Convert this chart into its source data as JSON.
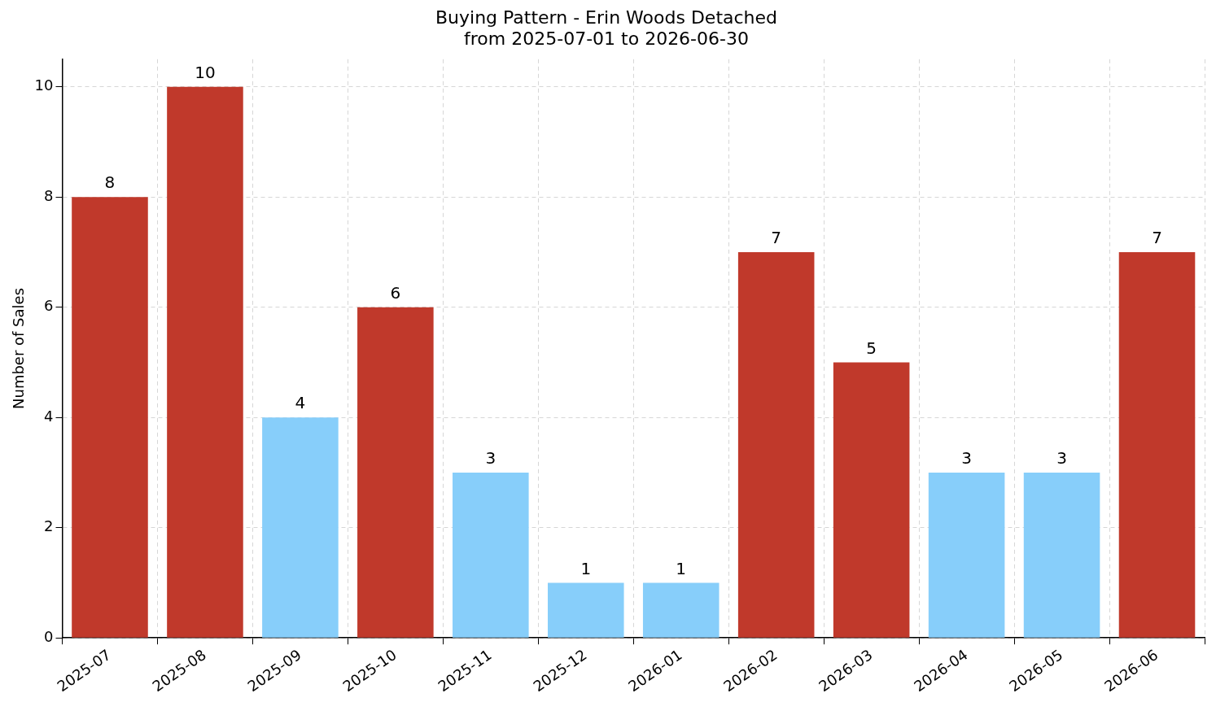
{
  "chart_data": {
    "type": "bar",
    "title": "Buying Pattern - Erin Woods Detached",
    "subtitle": "from 2025-07-01 to 2026-06-30",
    "ylabel": "Number of Sales",
    "categories": [
      "2025-07",
      "2025-08",
      "2025-09",
      "2025-10",
      "2025-11",
      "2025-12",
      "2026-01",
      "2026-02",
      "2026-03",
      "2026-04",
      "2026-05",
      "2026-06"
    ],
    "values": [
      8,
      10,
      4,
      6,
      3,
      1,
      1,
      7,
      5,
      3,
      3,
      7
    ],
    "colors": [
      "#c0392b",
      "#c0392b",
      "#87cefa",
      "#c0392b",
      "#87cefa",
      "#87cefa",
      "#87cefa",
      "#c0392b",
      "#c0392b",
      "#87cefa",
      "#87cefa",
      "#c0392b"
    ],
    "ylim": [
      0,
      10.5
    ],
    "yticks": [
      0,
      2,
      4,
      6,
      8,
      10
    ],
    "grid": true,
    "legend": false,
    "data_labels": true
  }
}
